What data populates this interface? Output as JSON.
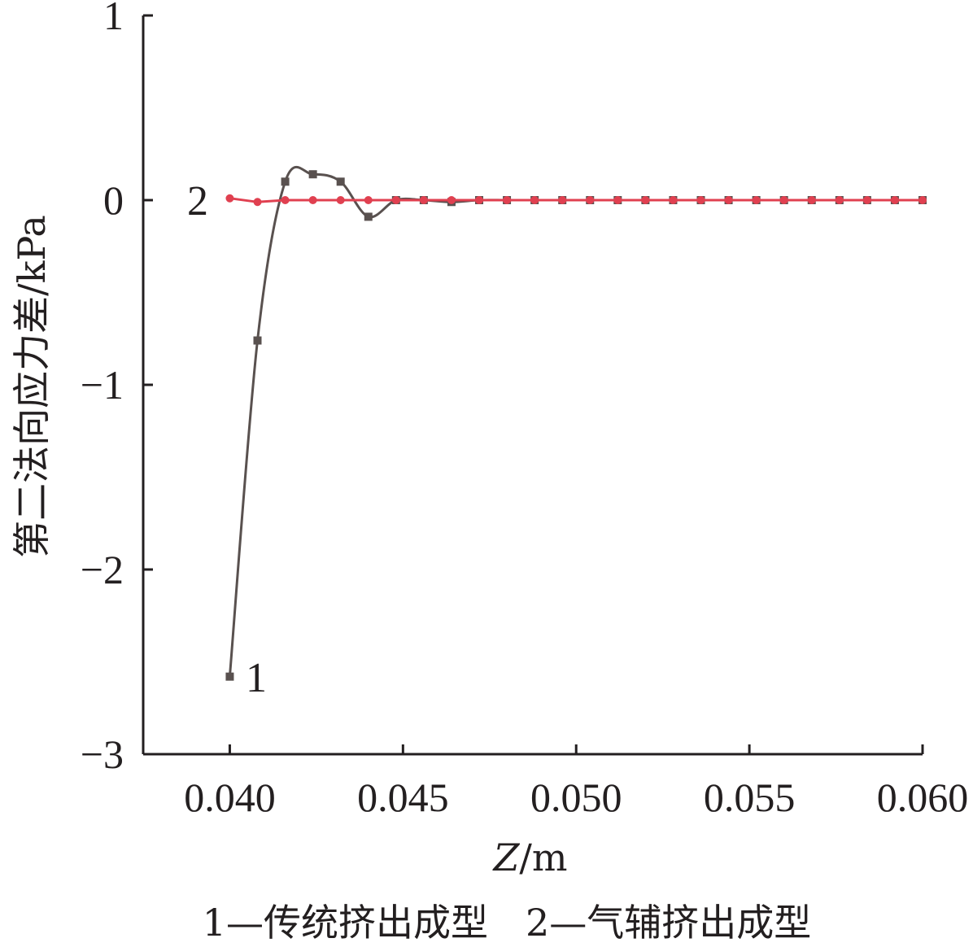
{
  "chart_data": {
    "type": "line",
    "xlabel": "Z/m",
    "xlabel_italic": "Z",
    "xlabel_unit": "/m",
    "ylabel": "第二法向应力差/kPa",
    "xlim": [
      0.0375,
      0.06
    ],
    "ylim": [
      -3,
      1
    ],
    "x_ticks": [
      0.04,
      0.045,
      0.05,
      0.055,
      0.06
    ],
    "x_tick_labels": [
      "0.040",
      "0.045",
      "0.050",
      "0.055",
      "0.060"
    ],
    "y_ticks": [
      1,
      0,
      -1,
      -2,
      -3
    ],
    "y_tick_labels": [
      "1",
      "0",
      "−1",
      "−2",
      "−3"
    ],
    "grid": false,
    "x": [
      0.04,
      0.0408,
      0.0416,
      0.0424,
      0.0432,
      0.044,
      0.0448,
      0.0456,
      0.0464,
      0.0472,
      0.048,
      0.0488,
      0.0496,
      0.0504,
      0.0512,
      0.052,
      0.0528,
      0.0536,
      0.0544,
      0.0552,
      0.056,
      0.0568,
      0.0576,
      0.0584,
      0.0592,
      0.06
    ],
    "series": [
      {
        "name": "1",
        "color": "#59514f",
        "marker": "square",
        "values": [
          -2.58,
          -0.76,
          0.1,
          0.14,
          0.1,
          -0.09,
          0.0,
          0.0,
          -0.01,
          0.0,
          0.0,
          0.0,
          0.0,
          0.0,
          0.0,
          0.0,
          0.0,
          0.0,
          0.0,
          0.0,
          0.0,
          0.0,
          0.0,
          0.0,
          0.0,
          0.0
        ]
      },
      {
        "name": "2",
        "color": "#e04050",
        "marker": "circle",
        "values": [
          0.01,
          -0.01,
          0.0,
          0.0,
          0.0,
          0.0,
          0.0,
          0.0,
          0.0,
          0.0,
          0.0,
          0.0,
          0.0,
          0.0,
          0.0,
          0.0,
          0.0,
          0.0,
          0.0,
          0.0,
          0.0,
          0.0,
          0.0,
          0.0,
          0.0,
          0.0
        ]
      }
    ],
    "annotations": [
      "1",
      "2"
    ],
    "legend_caption": "1—传统挤出成型　2—气辅挤出成型"
  },
  "colors": {
    "axis": "#231f20"
  }
}
